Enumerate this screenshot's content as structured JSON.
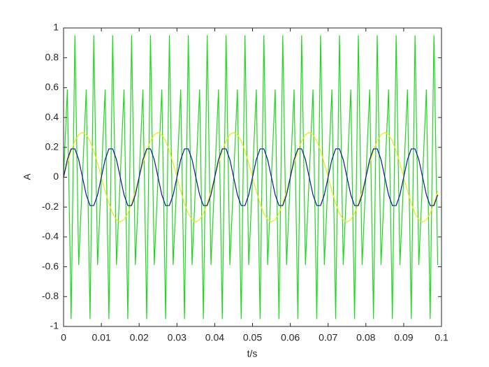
{
  "chart_data": {
    "type": "line",
    "xlabel": "t/s",
    "ylabel": "A",
    "xlim": [
      0,
      0.1
    ],
    "xticks": [
      0,
      0.01,
      0.02,
      0.03,
      0.04,
      0.05,
      0.06,
      0.07,
      0.08,
      0.09,
      0.1
    ],
    "ylim": [
      -1,
      1
    ],
    "yticks": [
      -1,
      -0.8,
      -0.6,
      -0.4,
      -0.2,
      0,
      0.2,
      0.4,
      0.6,
      0.8,
      1
    ],
    "grid": false,
    "box": true,
    "x": [
      0,
      0.001,
      0.002,
      0.003,
      0.004,
      0.005,
      0.006,
      0.007,
      0.008,
      0.009,
      0.01,
      0.011,
      0.012,
      0.013,
      0.014,
      0.015,
      0.016,
      0.017,
      0.018,
      0.019,
      0.02,
      0.021,
      0.022,
      0.023,
      0.024,
      0.025,
      0.026,
      0.027,
      0.028,
      0.029,
      0.03,
      0.031,
      0.032,
      0.033,
      0.034,
      0.035,
      0.036,
      0.037,
      0.038,
      0.039,
      0.04,
      0.041,
      0.042,
      0.043,
      0.044,
      0.045,
      0.046,
      0.047,
      0.048,
      0.049,
      0.05,
      0.051,
      0.052,
      0.053,
      0.054,
      0.055,
      0.056,
      0.057,
      0.058,
      0.059,
      0.06,
      0.061,
      0.062,
      0.063,
      0.064,
      0.065,
      0.066,
      0.067,
      0.068,
      0.069,
      0.07,
      0.071,
      0.072,
      0.073,
      0.074,
      0.075,
      0.076,
      0.077,
      0.078,
      0.079,
      0.08,
      0.081,
      0.082,
      0.083,
      0.084,
      0.085,
      0.086,
      0.087,
      0.088,
      0.089,
      0.09,
      0.091,
      0.092,
      0.093,
      0.094,
      0.095,
      0.096,
      0.097,
      0.098,
      0.099
    ],
    "series": [
      {
        "color": "#1ed81e",
        "values": [
          0,
          0.588,
          -0.951,
          0.951,
          -0.588,
          0,
          0.588,
          -0.951,
          0.951,
          -0.588,
          0,
          0.588,
          -0.951,
          0.951,
          -0.588,
          0,
          0.588,
          -0.951,
          0.951,
          -0.588,
          0,
          0.588,
          -0.951,
          0.951,
          -0.588,
          0,
          0.588,
          -0.951,
          0.951,
          -0.588,
          0,
          0.588,
          -0.951,
          0.951,
          -0.588,
          0,
          0.588,
          -0.951,
          0.951,
          -0.588,
          0,
          0.588,
          -0.951,
          0.951,
          -0.588,
          0,
          0.588,
          -0.951,
          0.951,
          -0.588,
          0,
          0.588,
          -0.951,
          0.951,
          -0.588,
          0,
          0.588,
          -0.951,
          0.951,
          -0.588,
          0,
          0.588,
          -0.951,
          0.951,
          -0.588,
          0,
          0.588,
          -0.951,
          0.951,
          -0.588,
          0,
          0.588,
          -0.951,
          0.951,
          -0.588,
          0,
          0.588,
          -0.951,
          0.951,
          -0.588,
          0,
          0.588,
          -0.951,
          0.951,
          -0.588,
          0,
          0.588,
          -0.951,
          0.951,
          -0.588,
          0,
          0.588,
          -0.951,
          0.951,
          -0.588,
          0,
          0.588,
          -0.951,
          0.951,
          -0.588
        ]
      },
      {
        "color": "#eaea10",
        "values": [
          0,
          0.093,
          0.176,
          0.243,
          0.285,
          0.3,
          0.285,
          0.243,
          0.176,
          0.093,
          0,
          -0.093,
          -0.176,
          -0.243,
          -0.285,
          -0.3,
          -0.285,
          -0.243,
          -0.176,
          -0.093,
          0,
          0.093,
          0.176,
          0.243,
          0.285,
          0.3,
          0.285,
          0.243,
          0.176,
          0.093,
          0,
          -0.093,
          -0.176,
          -0.243,
          -0.285,
          -0.3,
          -0.285,
          -0.243,
          -0.176,
          -0.093,
          0,
          0.093,
          0.176,
          0.243,
          0.285,
          0.3,
          0.285,
          0.243,
          0.176,
          0.093,
          0,
          -0.093,
          -0.176,
          -0.243,
          -0.285,
          -0.3,
          -0.285,
          -0.243,
          -0.176,
          -0.093,
          0,
          0.093,
          0.176,
          0.243,
          0.285,
          0.3,
          0.285,
          0.243,
          0.176,
          0.093,
          0,
          -0.093,
          -0.176,
          -0.243,
          -0.285,
          -0.3,
          -0.285,
          -0.243,
          -0.176,
          -0.093,
          0,
          0.093,
          0.176,
          0.243,
          0.285,
          0.3,
          0.285,
          0.243,
          0.176,
          0.093,
          0,
          -0.093,
          -0.176,
          -0.243,
          -0.285,
          -0.3,
          -0.285,
          -0.243,
          -0.176,
          -0.093
        ]
      },
      {
        "color": "#1010b0",
        "values": [
          0,
          0.118,
          0.19,
          0.19,
          0.118,
          0,
          -0.118,
          -0.19,
          -0.19,
          -0.118,
          0,
          0.118,
          0.19,
          0.19,
          0.118,
          0,
          -0.118,
          -0.19,
          -0.19,
          -0.118,
          0,
          0.118,
          0.19,
          0.19,
          0.118,
          0,
          -0.118,
          -0.19,
          -0.19,
          -0.118,
          0,
          0.118,
          0.19,
          0.19,
          0.118,
          0,
          -0.118,
          -0.19,
          -0.19,
          -0.118,
          0,
          0.118,
          0.19,
          0.19,
          0.118,
          0,
          -0.118,
          -0.19,
          -0.19,
          -0.118,
          0,
          0.118,
          0.19,
          0.19,
          0.118,
          0,
          -0.118,
          -0.19,
          -0.19,
          -0.118,
          0,
          0.118,
          0.19,
          0.19,
          0.118,
          0,
          -0.118,
          -0.19,
          -0.19,
          -0.118,
          0,
          0.118,
          0.19,
          0.19,
          0.118,
          0,
          -0.118,
          -0.19,
          -0.19,
          -0.118,
          0,
          0.118,
          0.19,
          0.19,
          0.118,
          0,
          -0.118,
          -0.19,
          -0.19,
          -0.118,
          0,
          0.118,
          0.19,
          0.19,
          0.118,
          0,
          -0.118,
          -0.19,
          -0.19,
          -0.118
        ]
      }
    ]
  }
}
